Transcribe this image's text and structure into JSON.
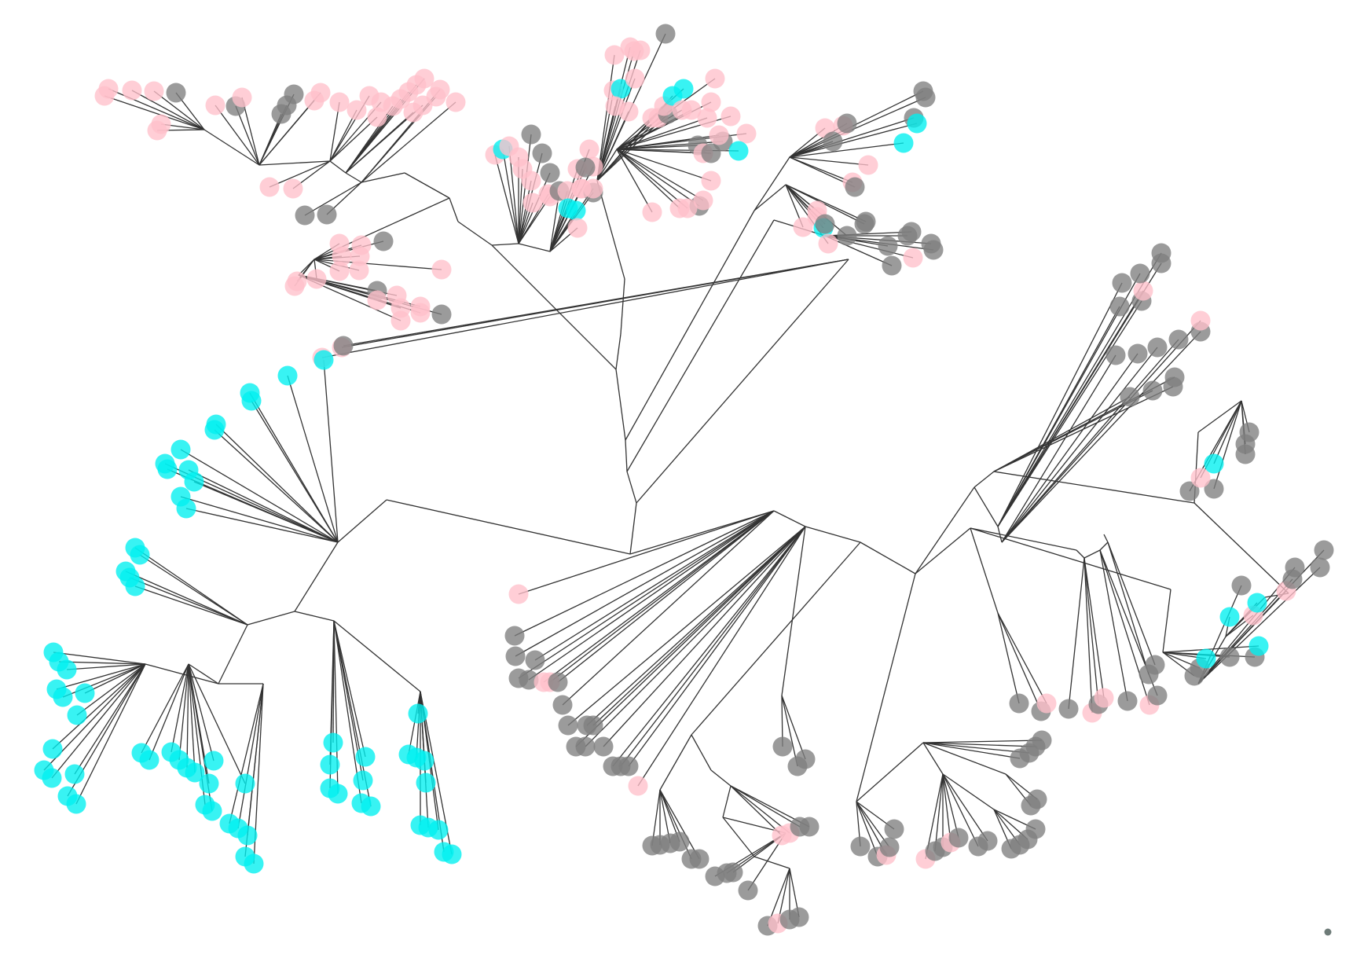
{
  "diagram": {
    "type": "unrooted-phylogenetic-tree",
    "colors": {
      "pink": "#ffc0cb",
      "cyan": "#00f0f0",
      "gray": "#7f7f7f",
      "edge": "#333333",
      "marker": "#6e7b78"
    },
    "clades": [
      {
        "name": "upper-left-clade",
        "color": "pink"
      },
      {
        "name": "upper-right-mixed-clade",
        "color": "gray"
      },
      {
        "name": "left-clade",
        "color": "cyan"
      },
      {
        "name": "lower-right-clade",
        "color": "gray"
      }
    ]
  }
}
